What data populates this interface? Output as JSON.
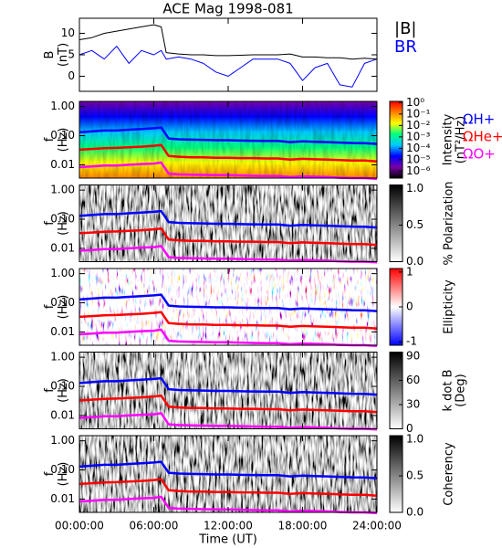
{
  "chart_data": [
    {
      "type": "line",
      "title": "ACE Mag 1998-081",
      "ylabel": [
        "B",
        "(nT)"
      ],
      "xlim": [
        0,
        24
      ],
      "xticks": [
        0,
        6,
        12,
        18,
        24
      ],
      "ylim": [
        -3.5,
        13.5
      ],
      "yticks": [
        0,
        5,
        10
      ],
      "x": [
        0,
        1,
        2,
        3,
        4,
        5,
        6,
        6.6,
        7,
        8,
        9,
        10,
        11,
        12,
        13,
        14,
        15,
        16,
        17,
        18,
        19,
        20,
        21,
        22,
        23,
        24
      ],
      "series": [
        {
          "name": "|B|",
          "color": "#000000",
          "values": [
            8.5,
            9,
            10,
            10.5,
            11,
            11.5,
            12,
            11.5,
            5.5,
            5.2,
            5,
            5,
            4.8,
            4.8,
            4.9,
            5,
            5,
            5,
            5.2,
            4.5,
            4.5,
            4.3,
            4.3,
            4,
            4.2,
            4
          ]
        },
        {
          "name": "BR",
          "color": "#0000ff",
          "values": [
            5,
            6,
            4,
            7,
            3,
            6,
            5,
            6,
            4,
            4.5,
            4,
            3,
            1,
            0,
            2,
            4,
            4,
            4,
            3,
            -1,
            2,
            3,
            -2,
            -2.5,
            3,
            4
          ]
        }
      ]
    },
    {
      "type": "spectrogram",
      "ylabel": [
        "f",
        "(Hz)"
      ],
      "xlabel": "Time (UT)",
      "xlim": [
        0,
        24
      ],
      "xticks": [
        {
          "value": 0,
          "label": "00:00:00"
        },
        {
          "value": 6,
          "label": "06:00:00"
        },
        {
          "value": 12,
          "label": "12:00:00"
        },
        {
          "value": 18,
          "label": "18:00:00"
        },
        {
          "value": 24,
          "label": "24:00:00"
        }
      ],
      "ylim": [
        0.0035,
        1.5
      ],
      "log_y": true,
      "yticks": [
        0.01,
        {
          "value": 0.1,
          "label": "0.10"
        },
        {
          "value": 1,
          "label": "1.00"
        }
      ],
      "x": [
        0,
        1,
        2,
        3,
        4,
        5,
        6,
        6.6,
        7.2,
        8,
        9,
        10,
        11,
        12,
        13,
        14,
        15,
        16,
        17,
        18,
        19,
        20,
        21,
        22,
        23,
        24
      ],
      "series": [
        {
          "name": "ΩH+",
          "color": "#0000ff",
          "values": [
            0.13,
            0.14,
            0.15,
            0.15,
            0.16,
            0.17,
            0.18,
            0.19,
            0.08,
            0.075,
            0.073,
            0.072,
            0.07,
            0.07,
            0.068,
            0.067,
            0.066,
            0.066,
            0.06,
            0.064,
            0.062,
            0.06,
            0.058,
            0.056,
            0.055,
            0.052
          ]
        },
        {
          "name": "ΩHe+",
          "color": "#ff0000",
          "values": [
            0.033,
            0.035,
            0.037,
            0.038,
            0.04,
            0.042,
            0.045,
            0.048,
            0.02,
            0.019,
            0.018,
            0.018,
            0.0175,
            0.0175,
            0.017,
            0.017,
            0.0165,
            0.0165,
            0.015,
            0.016,
            0.0155,
            0.015,
            0.0145,
            0.014,
            0.014,
            0.013
          ]
        },
        {
          "name": "ΩO+",
          "color": "#ff00ff",
          "values": [
            0.0083,
            0.0088,
            0.0094,
            0.0094,
            0.01,
            0.0106,
            0.011,
            0.012,
            0.005,
            0.0047,
            0.0046,
            0.0045,
            0.0044,
            0.0044,
            0.0043,
            0.0042,
            0.0041,
            0.0041,
            0.0038,
            0.004,
            0.0039,
            0.0038,
            0.0036,
            0.0035,
            0.0035,
            0.0033
          ]
        }
      ],
      "panels": [
        {
          "clabel": [
            "Intensity",
            "(nT²/Hz)"
          ],
          "cscale": "log",
          "clim": [
            2.5e-07,
            1.26
          ],
          "colormap": [
            "#000000",
            "#7a00a8",
            "#0000ff",
            "#00c8ff",
            "#00ff80",
            "#ffff00",
            "#ff8000",
            "#ff0000"
          ],
          "cticks": [
            {
              "value": 1,
              "label": "10⁰"
            },
            {
              "value": 0.1,
              "label": "10⁻¹"
            },
            {
              "value": 0.01,
              "label": "10⁻²"
            },
            {
              "value": 0.001,
              "label": "10⁻³"
            },
            {
              "value": 0.0001,
              "label": "10⁻⁴"
            },
            {
              "value": 1e-05,
              "label": "10⁻⁵"
            },
            {
              "value": 1e-06,
              "label": "10⁻⁶"
            }
          ]
        },
        {
          "clabel": [
            "% Polarization"
          ],
          "clim": [
            0,
            1.05
          ],
          "colormap": [
            "#ffffff",
            "#000000"
          ],
          "cticks": [
            {
              "value": 0,
              "label": "0.0"
            },
            0.5,
            {
              "value": 1,
              "label": "1.0"
            }
          ]
        },
        {
          "clabel": [
            "Ellipticity"
          ],
          "clim": [
            -1.1,
            1.1
          ],
          "colormap": [
            "#0000ff",
            "#ffffff",
            "#ff0000"
          ],
          "cticks": [
            -1,
            0,
            1
          ]
        },
        {
          "clabel": [
            "k dot B",
            "(Deg)"
          ],
          "clim": [
            0,
            95
          ],
          "colormap": [
            "#ffffff",
            "#000000"
          ],
          "cticks": [
            0,
            30,
            60,
            90
          ]
        },
        {
          "clabel": [
            "Coherency"
          ],
          "clim": [
            0,
            1.05
          ],
          "colormap": [
            "#ffffff",
            "#000000"
          ],
          "cticks": [
            {
              "value": 0,
              "label": "0.0"
            },
            0.5,
            {
              "value": 1,
              "label": "1.0"
            }
          ]
        }
      ]
    }
  ]
}
